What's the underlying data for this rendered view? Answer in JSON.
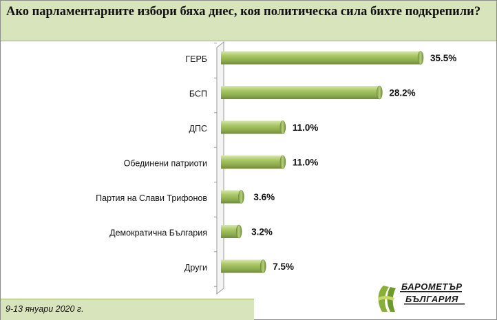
{
  "title": "Ако парламентарните избори бяха днес, коя политическа сила бихте подкрепили?",
  "footer": {
    "date": "9-13 януари 2020 г."
  },
  "logo": {
    "line1": "БАРОМЕТЪР",
    "line2": "БЪЛГАРИЯ"
  },
  "colors": {
    "bar": "#9bbb59",
    "bar_light": "#d6e6ac",
    "bar_dark": "#71893f",
    "header_bg": "#d7e4bc"
  },
  "chart_data": {
    "type": "bar",
    "orientation": "horizontal",
    "categories": [
      "ГЕРБ",
      "БСП",
      "ДПС",
      "Обединени патриоти",
      "Партия на Слави Трифонов",
      "Демократична България",
      "Други"
    ],
    "values": [
      35.5,
      28.2,
      11.0,
      11.0,
      3.6,
      3.2,
      7.5
    ],
    "value_labels": [
      "35.5%",
      "28.2%",
      "11.0%",
      "11.0%",
      "3.6%",
      "3.2%",
      "7.5%"
    ],
    "title": "Ако парламентарните избори бяха днес, коя политическа сила бихте подкрепили?",
    "xlabel": "",
    "ylabel": "",
    "xlim": [
      0,
      40
    ],
    "grid": false,
    "legend": "none"
  }
}
